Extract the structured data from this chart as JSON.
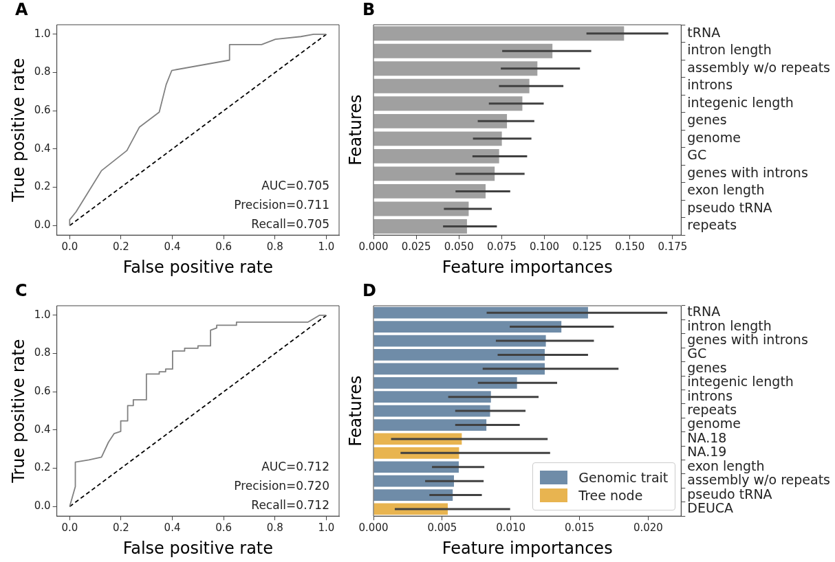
{
  "chart_data": [
    {
      "type": "line",
      "title": "A",
      "xlabel": "False positive rate",
      "ylabel": "True positive rate",
      "xlim": [
        -0.05,
        1.05
      ],
      "ylim": [
        -0.05,
        1.05
      ],
      "xticks": [
        {
          "value": 0,
          "label": "0.0"
        },
        {
          "value": 0.2,
          "label": "0.2"
        },
        {
          "value": 0.4,
          "label": "0.4"
        },
        {
          "value": 0.6,
          "label": "0.6"
        },
        {
          "value": 0.8,
          "label": "0.8"
        },
        {
          "value": 1,
          "label": "1.0"
        }
      ],
      "yticks": [
        {
          "value": 0,
          "label": "0.0"
        },
        {
          "value": 0.2,
          "label": "0.2"
        },
        {
          "value": 0.4,
          "label": "0.4"
        },
        {
          "value": 0.6,
          "label": "0.6"
        },
        {
          "value": 0.8,
          "label": "0.8"
        },
        {
          "value": 1,
          "label": "1.0"
        }
      ],
      "series": [
        {
          "color": "#808080",
          "x": [
            0,
            0,
            0.025,
            0.124,
            0.223,
            0.272,
            0.349,
            0.376,
            0.398,
            0.623,
            0.623,
            0.748,
            0.802,
            0.901,
            0.951,
            1
          ],
          "values": [
            0,
            0.03,
            0.072,
            0.287,
            0.392,
            0.515,
            0.593,
            0.737,
            0.811,
            0.865,
            0.946,
            0.946,
            0.974,
            0.988,
            1,
            1
          ]
        },
        {
          "color": "#000000",
          "line_style": "dashed",
          "x": [
            0,
            1
          ],
          "values": [
            0,
            1
          ]
        }
      ],
      "annotations": [
        "AUC=0.705",
        "Precision=0.711",
        "Recall=0.705"
      ]
    },
    {
      "type": "bar",
      "orientation": "horizontal",
      "title": "B",
      "xlabel": "Feature importances",
      "ylabel": "Features",
      "xlim": [
        0,
        0.18
      ],
      "xticks": [
        {
          "value": 0,
          "label": "0.000"
        },
        {
          "value": 0.025,
          "label": "0.025"
        },
        {
          "value": 0.05,
          "label": "0.050"
        },
        {
          "value": 0.075,
          "label": "0.075"
        },
        {
          "value": 0.1,
          "label": "0.100"
        },
        {
          "value": 0.125,
          "label": "0.125"
        },
        {
          "value": 0.15,
          "label": "0.150"
        },
        {
          "value": 0.175,
          "label": "0.175"
        }
      ],
      "categories": [
        "tRNA",
        "intron length",
        "assembly w/o repeats",
        "introns",
        "integenic length",
        "genes",
        "genome",
        "GC",
        "genes with introns",
        "exon length",
        "pseudo tRNA",
        "repeats"
      ],
      "series": [
        {
          "color": "#a0a0a0",
          "values": [
            0.1466,
            0.1047,
            0.0959,
            0.0912,
            0.0871,
            0.0781,
            0.0751,
            0.0735,
            0.0709,
            0.0656,
            0.0557,
            0.0547
          ],
          "errors": [
            [
              0.1246,
              0.1725
            ],
            [
              0.0753,
              0.1274
            ],
            [
              0.0745,
              0.1208
            ],
            [
              0.0734,
              0.1111
            ],
            [
              0.0675,
              0.0996
            ],
            [
              0.061,
              0.0941
            ],
            [
              0.0582,
              0.0924
            ],
            [
              0.0579,
              0.0899
            ],
            [
              0.048,
              0.0884
            ],
            [
              0.048,
              0.08
            ],
            [
              0.0412,
              0.0692
            ],
            [
              0.0407,
              0.0722
            ]
          ]
        }
      ]
    },
    {
      "type": "line",
      "title": "C",
      "xlabel": "False positive rate",
      "ylabel": "True positive rate",
      "xlim": [
        -0.05,
        1.05
      ],
      "ylim": [
        -0.05,
        1.05
      ],
      "xticks": [
        {
          "value": 0,
          "label": "0.0"
        },
        {
          "value": 0.2,
          "label": "0.2"
        },
        {
          "value": 0.4,
          "label": "0.4"
        },
        {
          "value": 0.6,
          "label": "0.6"
        },
        {
          "value": 0.8,
          "label": "0.8"
        },
        {
          "value": 1,
          "label": "1.0"
        }
      ],
      "yticks": [
        {
          "value": 0,
          "label": "0.0"
        },
        {
          "value": 0.2,
          "label": "0.2"
        },
        {
          "value": 0.4,
          "label": "0.4"
        },
        {
          "value": 0.6,
          "label": "0.6"
        },
        {
          "value": 0.8,
          "label": "0.8"
        },
        {
          "value": 1,
          "label": "1.0"
        }
      ],
      "series": [
        {
          "color": "#808080",
          "x": [
            0,
            0.022,
            0.022,
            0.075,
            0.124,
            0.151,
            0.173,
            0.199,
            0.199,
            0.226,
            0.226,
            0.248,
            0.248,
            0.299,
            0.299,
            0.349,
            0.349,
            0.374,
            0.374,
            0.401,
            0.401,
            0.448,
            0.448,
            0.5,
            0.5,
            0.549,
            0.549,
            0.573,
            0.573,
            0.65,
            0.65,
            0.928,
            0.973,
            1
          ],
          "values": [
            0,
            0.104,
            0.232,
            0.244,
            0.258,
            0.336,
            0.381,
            0.393,
            0.448,
            0.448,
            0.528,
            0.528,
            0.558,
            0.558,
            0.693,
            0.693,
            0.705,
            0.705,
            0.719,
            0.719,
            0.813,
            0.813,
            0.828,
            0.828,
            0.84,
            0.84,
            0.922,
            0.934,
            0.948,
            0.948,
            0.964,
            0.964,
            1,
            1
          ]
        },
        {
          "color": "#000000",
          "line_style": "dashed",
          "x": [
            0,
            1
          ],
          "values": [
            0,
            1
          ]
        }
      ],
      "annotations": [
        "AUC=0.712",
        "Precision=0.720",
        "Recall=0.712"
      ]
    },
    {
      "type": "bar",
      "orientation": "horizontal",
      "title": "D",
      "xlabel": "Feature importances",
      "ylabel": "Features",
      "xlim": [
        0,
        0.0224
      ],
      "legend": "bottom right",
      "xticks": [
        {
          "value": 0,
          "label": "0.000"
        },
        {
          "value": 0.005,
          "label": "0.005"
        },
        {
          "value": 0.01,
          "label": "0.010"
        },
        {
          "value": 0.015,
          "label": "0.015"
        },
        {
          "value": 0.02,
          "label": "0.020"
        }
      ],
      "categories": [
        "tRNA",
        "intron length",
        "genes with introns",
        "GC",
        "genes",
        "integenic length",
        "introns",
        "repeats",
        "genome",
        "NA.18",
        "NA.19",
        "exon length",
        "assembly w/o repeats",
        "pseudo tRNA",
        "DEUCA"
      ],
      "series": [
        {
          "name": "Genomic trait",
          "color": "#6f8ca8",
          "values": [
            0.01562,
            0.01368,
            0.01255,
            0.01247,
            0.01247,
            0.01045,
            0.00855,
            0.00849,
            0.00822,
            null,
            null,
            0.00621,
            0.00586,
            0.00577,
            null
          ],
          "errors": [
            [
              0.00824,
              0.02139
            ],
            [
              0.00992,
              0.0175
            ],
            [
              0.00891,
              0.01605
            ],
            [
              0.00904,
              0.01562
            ],
            [
              0.00795,
              0.01784
            ],
            [
              0.0076,
              0.01337
            ],
            [
              0.00544,
              0.01202
            ],
            [
              0.00595,
              0.01107
            ],
            [
              0.00595,
              0.01065
            ],
            null,
            null,
            [
              0.00426,
              0.00807
            ],
            [
              0.00376,
              0.00802
            ],
            [
              0.00407,
              0.00789
            ],
            null
          ]
        },
        {
          "name": "Tree node",
          "color": "#e8b450",
          "values": [
            null,
            null,
            null,
            null,
            null,
            null,
            null,
            null,
            null,
            0.00643,
            0.00623,
            null,
            null,
            null,
            0.00541
          ],
          "errors": [
            null,
            null,
            null,
            null,
            null,
            null,
            null,
            null,
            null,
            [
              0.00128,
              0.01268
            ],
            [
              0.00197,
              0.01286
            ],
            null,
            null,
            null,
            [
              0.00155,
              0.00995
            ]
          ]
        }
      ]
    }
  ]
}
